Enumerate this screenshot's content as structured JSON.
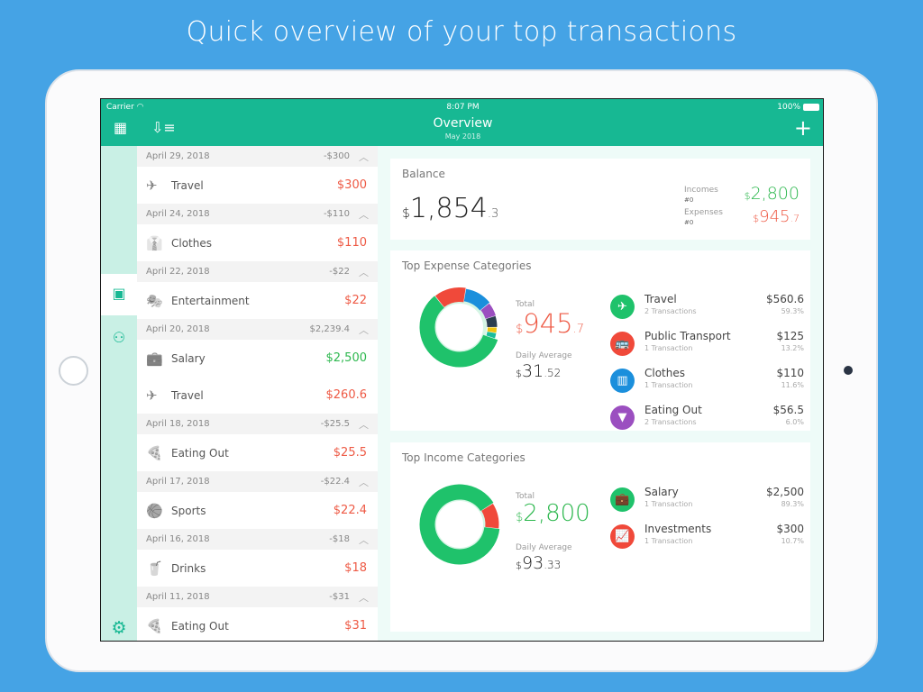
{
  "promo_title": "Quick overview of your top transactions",
  "status": {
    "carrier": "Carrier",
    "time": "8:07 PM",
    "battery": "100%"
  },
  "header": {
    "title": "Overview",
    "subtitle": "May 2018",
    "add_label": "+"
  },
  "list": [
    {
      "date": "April 29, 2018",
      "total": "-$300",
      "items": [
        {
          "icon": "airplane-icon",
          "glyph": "✈",
          "name": "Travel",
          "amount": "$300",
          "type": "expense"
        }
      ]
    },
    {
      "date": "April 24, 2018",
      "total": "-$110",
      "items": [
        {
          "icon": "shirt-icon",
          "glyph": "👔",
          "name": "Clothes",
          "amount": "$110",
          "type": "expense"
        }
      ]
    },
    {
      "date": "April 22, 2018",
      "total": "-$22",
      "items": [
        {
          "icon": "theater-masks-icon",
          "glyph": "🎭",
          "name": "Entertainment",
          "amount": "$22",
          "type": "expense"
        }
      ]
    },
    {
      "date": "April 20, 2018",
      "total": "$2,239.4",
      "items": [
        {
          "icon": "briefcase-icon",
          "glyph": "💼",
          "name": "Salary",
          "amount": "$2,500",
          "type": "income"
        },
        {
          "icon": "airplane-icon",
          "glyph": "✈",
          "name": "Travel",
          "amount": "$260.6",
          "type": "expense"
        }
      ]
    },
    {
      "date": "April 18, 2018",
      "total": "-$25.5",
      "items": [
        {
          "icon": "pizza-icon",
          "glyph": "🍕",
          "name": "Eating Out",
          "amount": "$25.5",
          "type": "expense"
        }
      ]
    },
    {
      "date": "April 17, 2018",
      "total": "-$22.4",
      "items": [
        {
          "icon": "basketball-hoop-icon",
          "glyph": "🏀",
          "name": "Sports",
          "amount": "$22.4",
          "type": "expense"
        }
      ]
    },
    {
      "date": "April 16, 2018",
      "total": "-$18",
      "items": [
        {
          "icon": "drink-cup-icon",
          "glyph": "🥤",
          "name": "Drinks",
          "amount": "$18",
          "type": "expense"
        }
      ]
    },
    {
      "date": "April 11, 2018",
      "total": "-$31",
      "items": [
        {
          "icon": "pizza-icon",
          "glyph": "🍕",
          "name": "Eating Out",
          "amount": "$31",
          "type": "expense"
        }
      ]
    }
  ],
  "balance": {
    "label": "Balance",
    "currency": "$",
    "whole": "1,854",
    "decimal": ".3",
    "incomes_label": "Incomes",
    "incomes_count": "#0",
    "incomes_cur": "$",
    "incomes_value": "2,800",
    "expenses_label": "Expenses",
    "expenses_count": "#0",
    "expenses_cur": "$",
    "expenses_value": "945",
    "expenses_dec": ".7"
  },
  "expense": {
    "title": "Top Expense Categories",
    "total_label": "Total",
    "total_cur": "$",
    "total_whole": "945",
    "total_dec": ".7",
    "avg_label": "Daily Average",
    "avg_cur": "$",
    "avg_whole": "31",
    "avg_dec": ".52",
    "categories": [
      {
        "name": "Travel",
        "sub": "2 Transactions",
        "value": "$560.6",
        "pct": "59.3%",
        "color": "#1fc26b",
        "glyph": "✈",
        "icon": "airplane-icon"
      },
      {
        "name": "Public Transport",
        "sub": "1 Transaction",
        "value": "$125",
        "pct": "13.2%",
        "color": "#f0493a",
        "glyph": "🚌",
        "icon": "bus-icon"
      },
      {
        "name": "Clothes",
        "sub": "1 Transaction",
        "value": "$110",
        "pct": "11.6%",
        "color": "#1b8fdc",
        "glyph": "▥",
        "icon": "shirt-icon"
      },
      {
        "name": "Eating Out",
        "sub": "2 Transactions",
        "value": "$56.5",
        "pct": "6.0%",
        "color": "#9b4fc0",
        "glyph": "▼",
        "icon": "pizza-icon"
      }
    ]
  },
  "income": {
    "title": "Top Income Categories",
    "total_label": "Total",
    "total_cur": "$",
    "total_whole": "2,800",
    "avg_label": "Daily Average",
    "avg_cur": "$",
    "avg_whole": "93",
    "avg_dec": ".33",
    "categories": [
      {
        "name": "Salary",
        "sub": "1 Transaction",
        "value": "$2,500",
        "pct": "89.3%",
        "color": "#1fc26b",
        "glyph": "💼",
        "icon": "briefcase-icon"
      },
      {
        "name": "Investments",
        "sub": "1 Transaction",
        "value": "$300",
        "pct": "10.7%",
        "color": "#f0493a",
        "glyph": "📈",
        "icon": "chart-line-icon"
      }
    ]
  },
  "colors": {
    "accent": "#17b893",
    "expense": "#ee5a45",
    "income": "#2eb84f"
  }
}
